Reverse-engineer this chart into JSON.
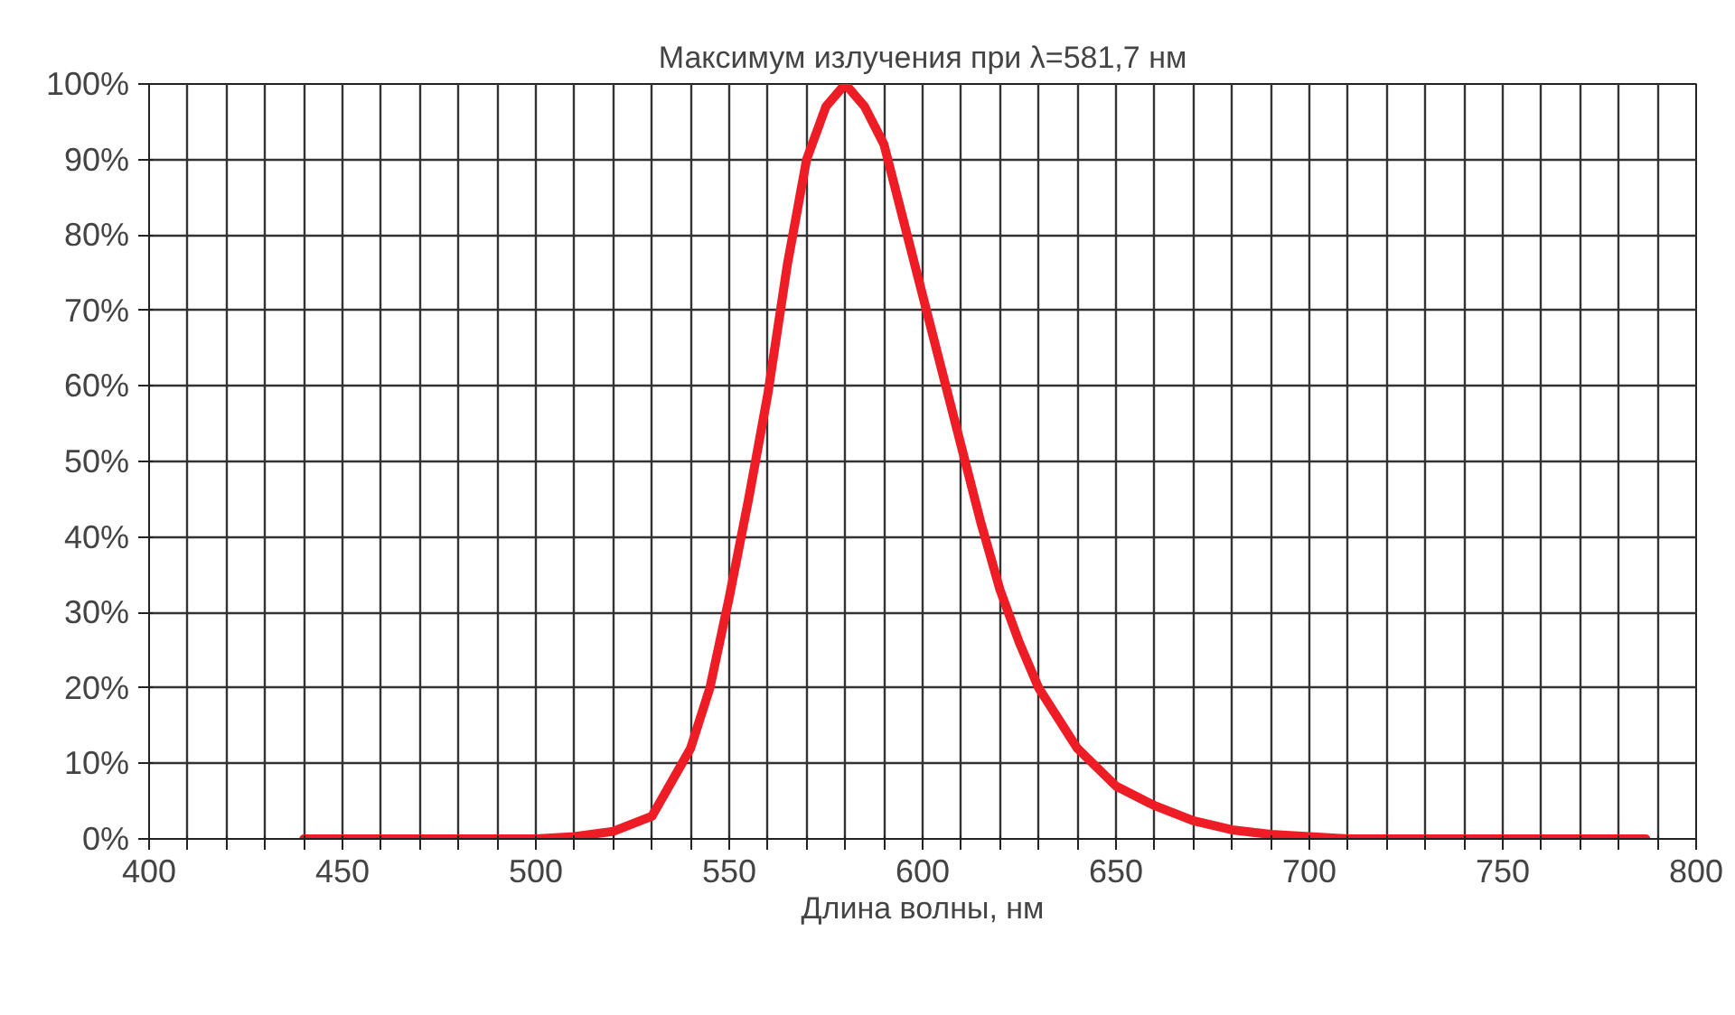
{
  "chart_data": {
    "type": "line",
    "title": "Максимум излучения при λ=581,7 нм",
    "xlabel": "Длина волны, нм",
    "x": [
      440,
      480,
      500,
      510,
      520,
      530,
      540,
      545,
      550,
      555,
      560,
      565,
      570,
      575,
      580,
      585,
      590,
      595,
      600,
      605,
      610,
      615,
      620,
      625,
      630,
      640,
      650,
      660,
      670,
      680,
      690,
      700,
      710,
      720,
      750,
      787
    ],
    "series": [
      {
        "color": "#ee1c25",
        "values": [
          0,
          0,
          0,
          0.3,
          1,
          3,
          12,
          20,
          32,
          45,
          59,
          76,
          90,
          97,
          100,
          97,
          92,
          82,
          72,
          62,
          52,
          42,
          33,
          26,
          20,
          12,
          7,
          4.4,
          2.4,
          1.2,
          0.6,
          0.3,
          0,
          0,
          0,
          0
        ]
      }
    ],
    "xlim": [
      400,
      800
    ],
    "xticks": [
      400,
      {
        "value": 410,
        "label": null
      },
      {
        "value": 420,
        "label": null
      },
      {
        "value": 430,
        "label": null
      },
      {
        "value": 440,
        "label": null
      },
      450,
      {
        "value": 460,
        "label": null
      },
      {
        "value": 470,
        "label": null
      },
      {
        "value": 480,
        "label": null
      },
      {
        "value": 490,
        "label": null
      },
      500,
      {
        "value": 510,
        "label": null
      },
      {
        "value": 520,
        "label": null
      },
      {
        "value": 530,
        "label": null
      },
      {
        "value": 540,
        "label": null
      },
      550,
      {
        "value": 560,
        "label": null
      },
      {
        "value": 570,
        "label": null
      },
      {
        "value": 580,
        "label": null
      },
      {
        "value": 590,
        "label": null
      },
      600,
      {
        "value": 610,
        "label": null
      },
      {
        "value": 620,
        "label": null
      },
      {
        "value": 630,
        "label": null
      },
      {
        "value": 640,
        "label": null
      },
      650,
      {
        "value": 660,
        "label": null
      },
      {
        "value": 670,
        "label": null
      },
      {
        "value": 680,
        "label": null
      },
      {
        "value": 690,
        "label": null
      },
      700,
      {
        "value": 710,
        "label": null
      },
      {
        "value": 720,
        "label": null
      },
      {
        "value": 730,
        "label": null
      },
      {
        "value": 740,
        "label": null
      },
      750,
      {
        "value": 760,
        "label": null
      },
      {
        "value": 770,
        "label": null
      },
      {
        "value": 780,
        "label": null
      },
      {
        "value": 790,
        "label": null
      },
      800
    ],
    "ylim": [
      0,
      100
    ],
    "yticks": [
      {
        "value": 0,
        "label": "0%"
      },
      {
        "value": 10,
        "label": "10%"
      },
      {
        "value": 20,
        "label": "20%"
      },
      {
        "value": 30,
        "label": "30%"
      },
      {
        "value": 40,
        "label": "40%"
      },
      {
        "value": 50,
        "label": "50%"
      },
      {
        "value": 60,
        "label": "60%"
      },
      {
        "value": 70,
        "label": "70%"
      },
      {
        "value": 80,
        "label": "80%"
      },
      {
        "value": 90,
        "label": "90%"
      },
      {
        "value": 100,
        "label": "100%"
      }
    ],
    "grid": true,
    "line_style": "solid",
    "marker": "none"
  }
}
